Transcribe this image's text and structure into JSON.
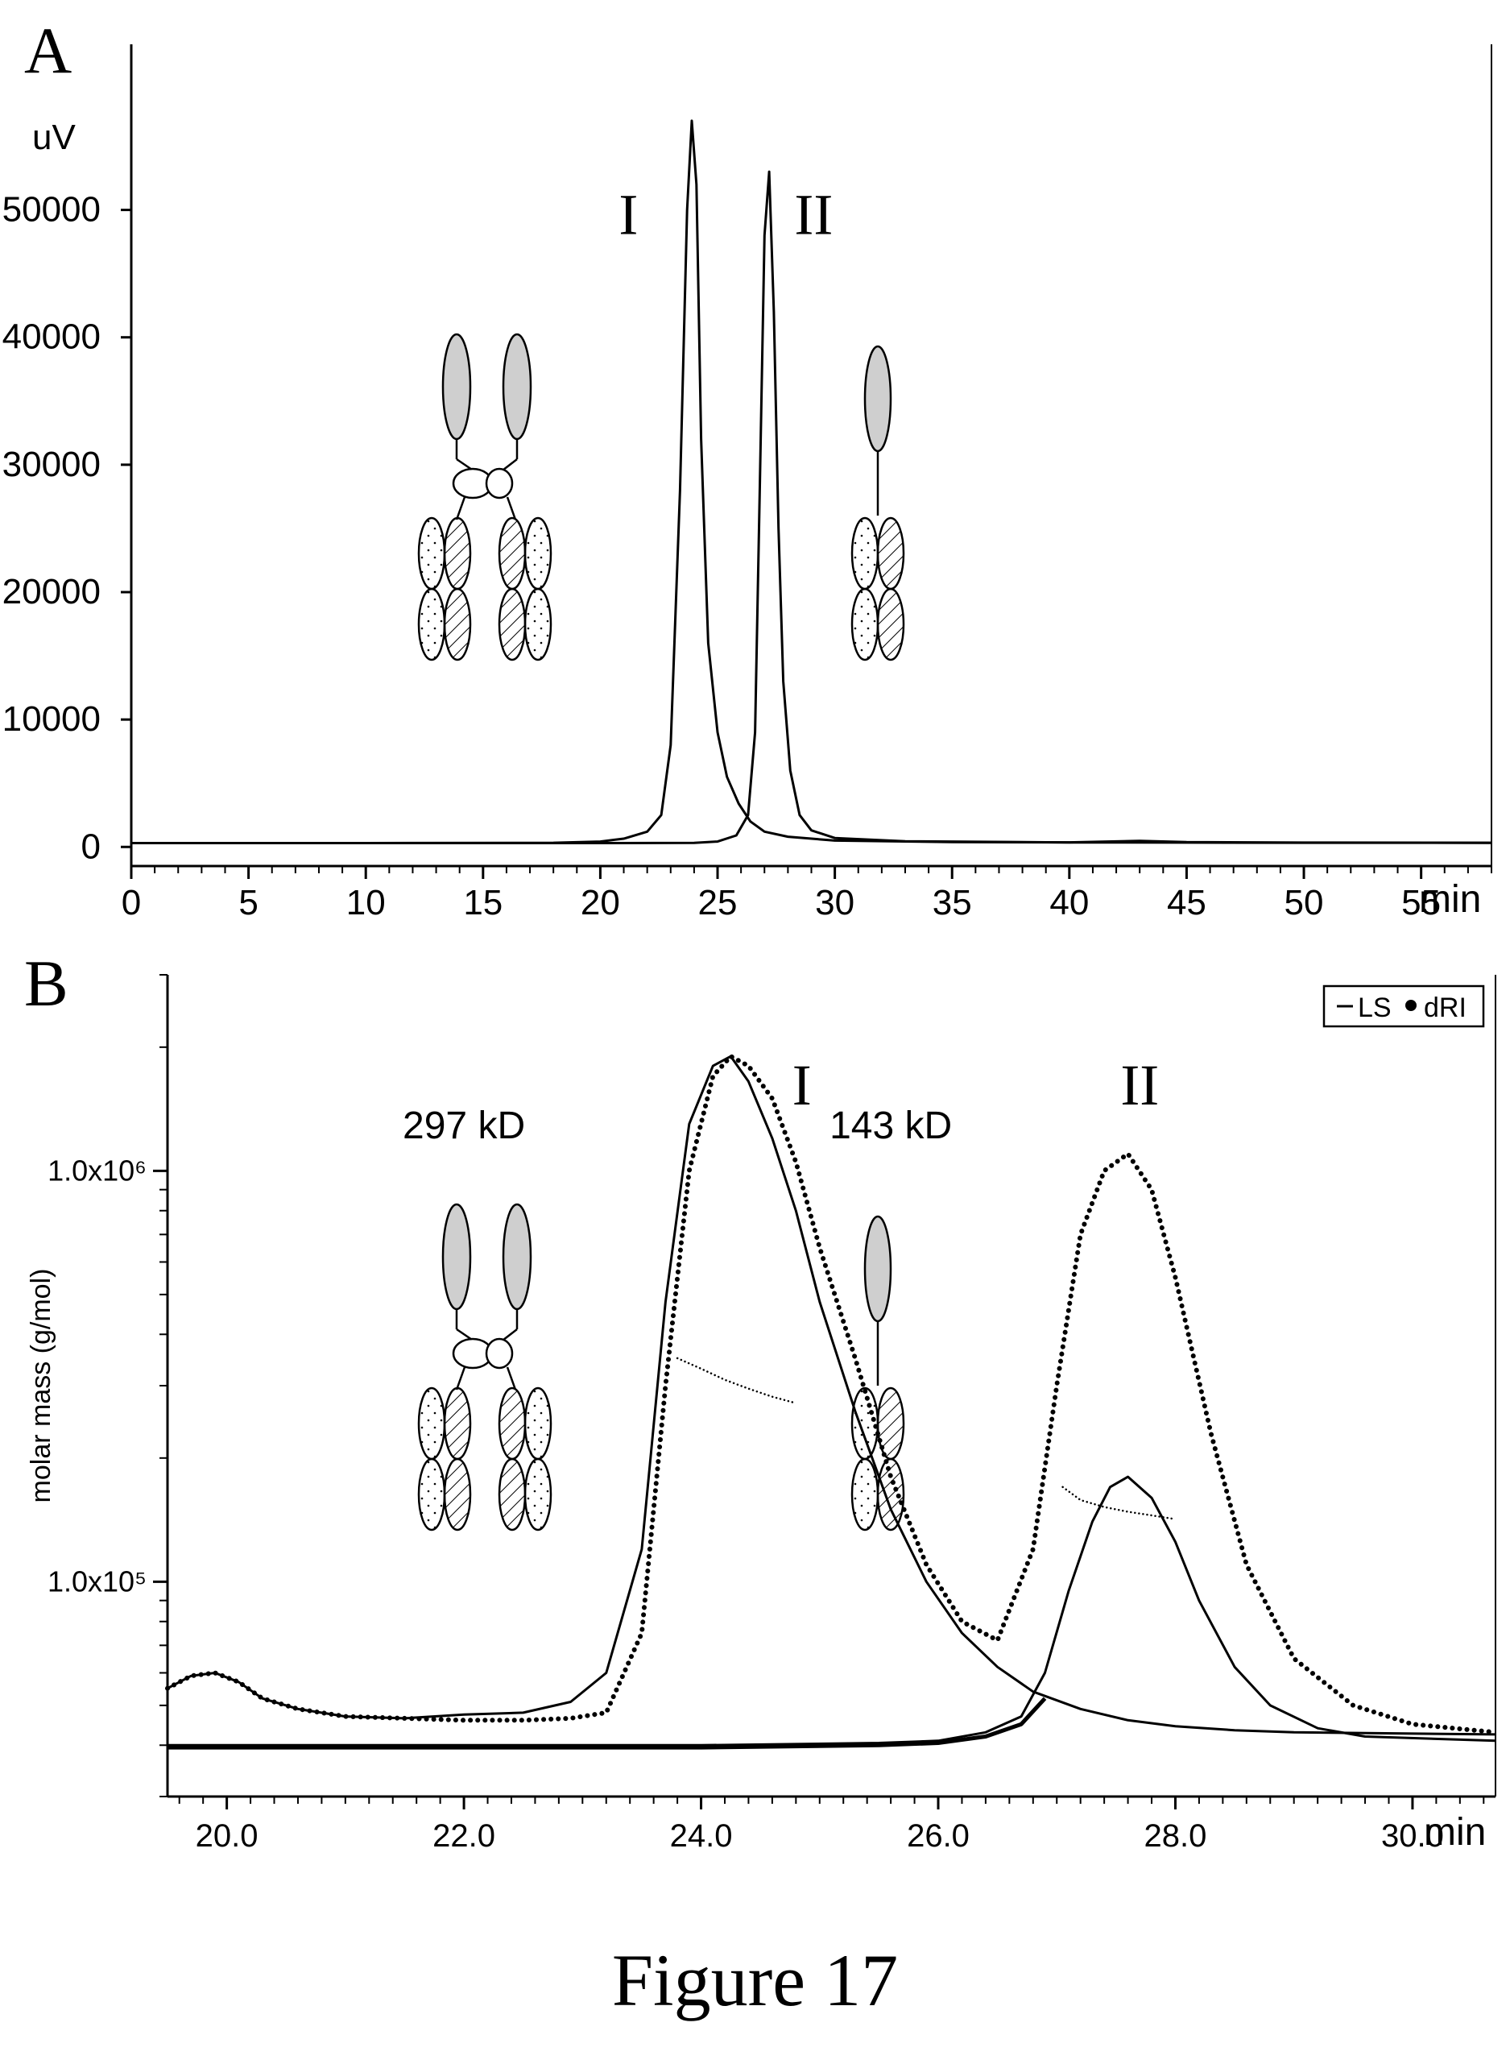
{
  "figure_caption": "Figure 17",
  "chart_data": [
    {
      "type": "line",
      "panel_label": "A",
      "title": "",
      "xlabel": "min",
      "ylabel": "uV",
      "xlim": [
        0,
        58
      ],
      "ylim": [
        -1500,
        63000
      ],
      "x_ticks": [
        0,
        5,
        10,
        15,
        20,
        25,
        30,
        35,
        40,
        45,
        50,
        55
      ],
      "y_ticks": [
        0,
        10000,
        20000,
        30000,
        40000,
        50000
      ],
      "grid": false,
      "legend": "none",
      "series": [
        {
          "x": [
            0,
            10,
            18,
            20,
            21,
            22,
            22.6,
            23.0,
            23.4,
            23.7,
            23.9,
            24.1,
            24.3,
            24.6,
            25.0,
            25.4,
            25.9,
            26.4,
            27,
            28,
            30,
            35,
            40,
            43,
            45,
            50,
            58
          ],
          "values": [
            300,
            300,
            330,
            420,
            650,
            1200,
            2500,
            8000,
            28000,
            50000,
            57000,
            52000,
            32000,
            16000,
            9000,
            5500,
            3400,
            2000,
            1200,
            800,
            500,
            380,
            360,
            480,
            380,
            340,
            330
          ]
        },
        {
          "x": [
            0,
            20,
            24,
            25,
            25.8,
            26.3,
            26.6,
            26.8,
            27.0,
            27.2,
            27.4,
            27.6,
            27.8,
            28.1,
            28.5,
            29.0,
            30,
            33,
            40,
            45,
            50,
            58
          ],
          "values": [
            300,
            300,
            320,
            420,
            900,
            2500,
            9000,
            28000,
            48000,
            53000,
            42000,
            25000,
            13000,
            6000,
            2500,
            1300,
            700,
            450,
            350,
            340,
            330,
            320
          ]
        }
      ],
      "annotations": [
        {
          "text": "I",
          "x": 21.2,
          "y": 50000
        },
        {
          "text": "II",
          "x": 29.1,
          "y": 50000
        }
      ]
    },
    {
      "type": "line",
      "panel_label": "B",
      "title": "",
      "xlabel": "min",
      "ylabel": "molar mass (g/mol)",
      "yscale": "log",
      "xlim": [
        19.5,
        30.7
      ],
      "ylim": [
        30000,
        3000000
      ],
      "x_ticks": [
        20.0,
        22.0,
        24.0,
        26.0,
        28.0,
        30.0
      ],
      "x_tick_labels": [
        "20.0",
        "22.0",
        "24.0",
        "26.0",
        "28.0",
        "30.0"
      ],
      "y_tick_labels": [
        "1.0x10⁶",
        "1.0x10⁵"
      ],
      "y_tick_values": [
        1000000,
        100000
      ],
      "grid": false,
      "legend": "top-right",
      "legend_entries": [
        "LS",
        "dRI"
      ],
      "series": [
        {
          "name": "LS",
          "x": [
            19.5,
            19.7,
            19.9,
            20.1,
            20.3,
            20.6,
            21.0,
            21.5,
            22.0,
            22.5,
            22.9,
            23.2,
            23.5,
            23.7,
            23.9,
            24.1,
            24.25,
            24.4,
            24.6,
            24.8,
            25.0,
            25.3,
            25.6,
            25.9,
            26.2,
            26.5,
            26.8,
            27.2,
            27.6,
            28.0,
            28.5,
            29.0,
            30.7
          ],
          "values": [
            55000,
            59000,
            60000,
            57000,
            52000,
            49000,
            47000,
            46500,
            47500,
            48000,
            51000,
            60000,
            120000,
            480000,
            1300000,
            1800000,
            1900000,
            1650000,
            1200000,
            800000,
            480000,
            260000,
            150000,
            100000,
            75000,
            62000,
            54000,
            49000,
            46000,
            44500,
            43500,
            43000,
            42500
          ]
        },
        {
          "name": "dRI",
          "x": [
            19.5,
            19.7,
            19.9,
            20.1,
            20.3,
            20.6,
            21.0,
            21.5,
            22.0,
            22.5,
            22.9,
            23.2,
            23.5,
            23.7,
            23.9,
            24.1,
            24.25,
            24.4,
            24.6,
            24.8,
            25.0,
            25.3,
            25.6,
            25.9,
            26.2,
            26.5,
            26.8,
            27.0,
            27.2,
            27.4,
            27.6,
            27.8,
            28.0,
            28.3,
            28.6,
            29.0,
            29.5,
            30.0,
            30.7
          ],
          "values": [
            55000,
            59000,
            60000,
            57000,
            52000,
            49000,
            47000,
            46500,
            46000,
            46000,
            46500,
            48000,
            75000,
            300000,
            1000000,
            1700000,
            1900000,
            1800000,
            1500000,
            1050000,
            650000,
            350000,
            180000,
            110000,
            80000,
            72000,
            120000,
            300000,
            700000,
            1000000,
            1100000,
            900000,
            550000,
            230000,
            110000,
            65000,
            50000,
            45000,
            43000
          ]
        },
        {
          "name": "LS peak II",
          "x": [
            19.5,
            24,
            25.5,
            26.0,
            26.4,
            26.7,
            26.9,
            27.1,
            27.3,
            27.45,
            27.6,
            27.8,
            28.0,
            28.2,
            28.5,
            28.8,
            29.2,
            29.6,
            30.7
          ],
          "values": [
            40000,
            40000,
            40500,
            41000,
            43000,
            47000,
            60000,
            95000,
            140000,
            170000,
            180000,
            160000,
            125000,
            90000,
            62000,
            50000,
            44000,
            42000,
            41000
          ]
        },
        {
          "name": "dRI peak II baseline",
          "x": [
            19.5,
            24,
            25.5,
            26.0,
            26.4,
            26.7,
            26.9
          ],
          "values": [
            39500,
            39500,
            40000,
            40500,
            42000,
            45000,
            52000
          ]
        },
        {
          "name": "molar mass I",
          "x": [
            23.8,
            24.0,
            24.2,
            24.4,
            24.6,
            24.8
          ],
          "values": [
            350000,
            330000,
            310000,
            295000,
            282000,
            272000
          ]
        },
        {
          "name": "molar mass II",
          "x": [
            27.05,
            27.2,
            27.4,
            27.6,
            27.8,
            28.0
          ],
          "values": [
            170000,
            158000,
            152000,
            148000,
            145000,
            142000
          ]
        }
      ],
      "annotations": [
        {
          "text": "I",
          "x": 24.85,
          "y": 1450000
        },
        {
          "text": "II",
          "x": 27.7,
          "y": 1450000
        },
        {
          "text": "297 kD",
          "x": 22.0,
          "y": 1200000
        },
        {
          "text": "143 kD",
          "x": 25.6,
          "y": 1200000
        }
      ]
    }
  ]
}
